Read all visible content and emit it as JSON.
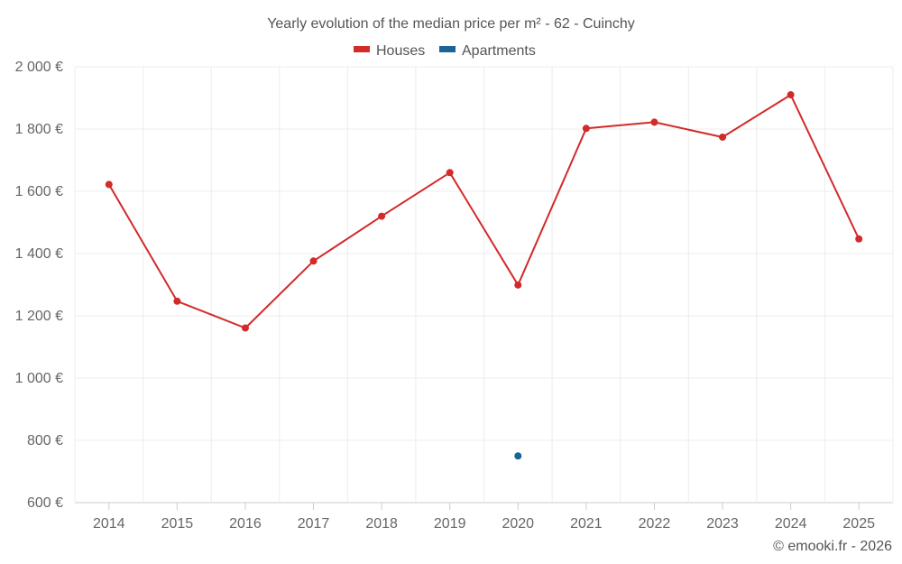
{
  "chart_data": {
    "type": "line",
    "title": "Yearly evolution of the median price per m² - 62 - Cuinchy",
    "categories": [
      "2014",
      "2015",
      "2016",
      "2017",
      "2018",
      "2019",
      "2020",
      "2021",
      "2022",
      "2023",
      "2024",
      "2025"
    ],
    "series": [
      {
        "name": "Houses",
        "color": "#d32a2a",
        "values": [
          1622,
          1247,
          1161,
          1376,
          1520,
          1660,
          1299,
          1802,
          1822,
          1774,
          1910,
          1447
        ]
      },
      {
        "name": "Apartments",
        "color": "#1a6496",
        "values": [
          null,
          null,
          null,
          null,
          null,
          null,
          750,
          null,
          null,
          null,
          null,
          null
        ]
      }
    ],
    "ylim": [
      600,
      2000
    ],
    "yticks": [
      600,
      800,
      1000,
      1200,
      1400,
      1600,
      1800,
      2000
    ],
    "ytick_labels": [
      "600 €",
      "800 €",
      "1 000 €",
      "1 200 €",
      "1 400 €",
      "1 600 €",
      "1 800 €",
      "2 000 €"
    ],
    "xlabel": "",
    "ylabel": "",
    "grid": true,
    "legend_position": "top-center"
  },
  "credit": "© emooki.fr - 2026"
}
